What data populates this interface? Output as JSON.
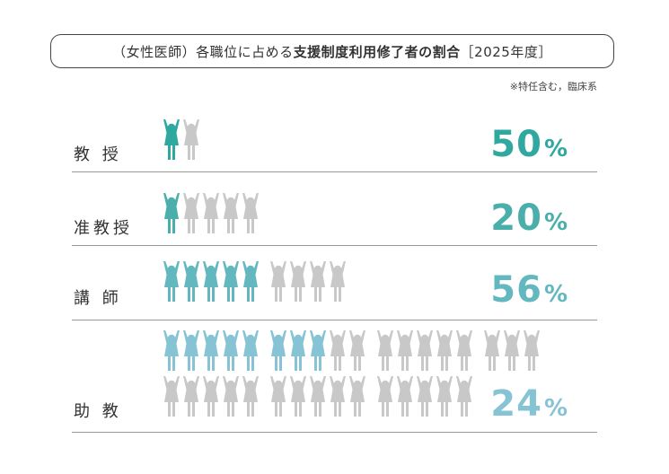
{
  "title": {
    "prefix": "（女性医師）各職位に占める",
    "bold": "支援制度利用修了者の割合",
    "suffix": "［2025年度］"
  },
  "note": "※特任含む，臨床系",
  "colors": {
    "teal": "#2fa8a0",
    "light_blue": "#7fbfd0",
    "gray": "#c8c8c8"
  },
  "icon": "person-arms-raised-icon",
  "chart_data": {
    "type": "pictogram",
    "unit": "%",
    "categories": [
      "教 授",
      "准教授",
      "講 師",
      "助 教"
    ],
    "values": [
      50,
      20,
      56,
      24
    ],
    "rows": [
      {
        "label": "教 授",
        "percent": 50,
        "highlighted": 1,
        "total": 2,
        "color": "#2fa8a0"
      },
      {
        "label": "准教授",
        "percent": 20,
        "highlighted": 1,
        "total": 5,
        "color": "#4aafab"
      },
      {
        "label": "講 師",
        "percent": 56,
        "highlighted": 5,
        "total": 9,
        "color": "#63b8c0"
      },
      {
        "label": "助 教",
        "percent": 24,
        "highlighted": 8,
        "total": 33,
        "color": "#86c3d4"
      }
    ]
  }
}
